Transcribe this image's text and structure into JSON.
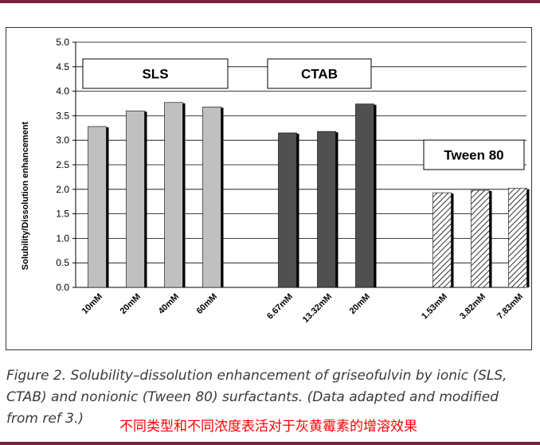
{
  "chart_data": {
    "type": "bar",
    "ylabel": "Solubility/Dissolution enhancement",
    "xlabel": "",
    "ylim": [
      0,
      5
    ],
    "yticks": [
      "0.0",
      "0.5",
      "1.0",
      "1.5",
      "2.0",
      "2.5",
      "3.0",
      "3.5",
      "4.0",
      "4.5",
      "5.0"
    ],
    "grid": true,
    "groups": [
      {
        "name": "SLS",
        "fill": "#c0c0c0",
        "pattern": "solid",
        "categories": [
          "10mM",
          "20mM",
          "40mM",
          "60mM"
        ],
        "values": [
          3.28,
          3.6,
          3.77,
          3.68
        ]
      },
      {
        "name": "CTAB",
        "fill": "#505050",
        "pattern": "solid",
        "categories": [
          "6.67mM",
          "13.32mM",
          "20mM"
        ],
        "values": [
          3.15,
          3.18,
          3.74
        ]
      },
      {
        "name": "Tween 80",
        "fill": "#ffffff",
        "pattern": "diagonal-hatch",
        "categories": [
          "1.53mM",
          "3.82mM",
          "7.83mM"
        ],
        "values": [
          1.93,
          1.98,
          2.02
        ]
      }
    ]
  },
  "caption": {
    "text": "Figure 2. Solubility–dissolution enhancement of griseofulvin by ionic (SLS, CTAB) and nonionic (Tween 80) surfactants. (Data adapted and modified from ref 3.)",
    "note": "不同类型和不同浓度表活对于灰黄霉素的增溶效果"
  },
  "colors": {
    "rule": "#7a1f3d",
    "caption_text": "#3a3a3a",
    "note_text": "#ff0000"
  }
}
